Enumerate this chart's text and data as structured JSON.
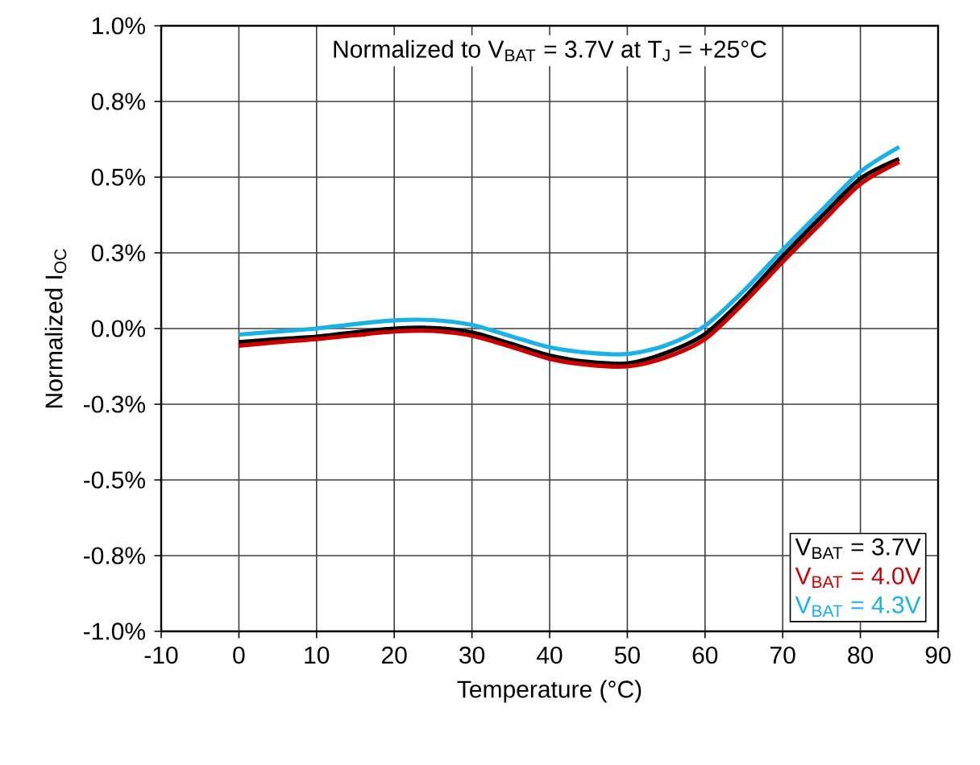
{
  "chart_data": {
    "type": "line",
    "xlabel": "Temperature (°C)",
    "ylabel": "Normalized I$_{OC}$",
    "annotations": [
      "Normalized to V$_{BAT}$ = 3.7V at T$_{J}$ = +25°C"
    ],
    "x": [
      0,
      5,
      10,
      15,
      20,
      25,
      30,
      35,
      40,
      45,
      50,
      55,
      60,
      65,
      70,
      75,
      80,
      85
    ],
    "series": [
      {
        "name": "V$_{BAT}$ = 3.7V",
        "color": "#000000",
        "values": [
          -0.045,
          -0.035,
          -0.027,
          -0.012,
          0.0,
          0.002,
          -0.013,
          -0.05,
          -0.089,
          -0.11,
          -0.115,
          -0.08,
          -0.018,
          0.1,
          0.239,
          0.37,
          0.495,
          0.56
        ]
      },
      {
        "name": "V$_{BAT}$ = 4.0V",
        "color": "#cc0000",
        "values": [
          -0.057,
          -0.045,
          -0.035,
          -0.022,
          -0.01,
          -0.008,
          -0.024,
          -0.06,
          -0.1,
          -0.12,
          -0.125,
          -0.095,
          -0.035,
          0.085,
          0.22,
          0.35,
          0.477,
          0.55
        ]
      },
      {
        "name": "V$_{BAT}$ = 4.3V",
        "color": "#1ab0e8",
        "values": [
          -0.02,
          -0.01,
          0.0,
          0.015,
          0.027,
          0.028,
          0.012,
          -0.025,
          -0.062,
          -0.08,
          -0.084,
          -0.055,
          0.009,
          0.125,
          0.26,
          0.39,
          0.518,
          0.6
        ]
      }
    ],
    "xlim": [
      -10,
      90
    ],
    "xticks": [
      -10,
      0,
      10,
      20,
      30,
      40,
      50,
      60,
      70,
      80,
      90
    ],
    "ylim": [
      -1.0,
      1.0
    ],
    "yticks": [
      {
        "value": -1.0,
        "label": "-1.0%"
      },
      {
        "value": -0.75,
        "label": "-0.8%"
      },
      {
        "value": -0.5,
        "label": "-0.5%"
      },
      {
        "value": -0.25,
        "label": "-0.3%"
      },
      {
        "value": 0.0,
        "label": "0.0%"
      },
      {
        "value": 0.25,
        "label": "0.3%"
      },
      {
        "value": 0.5,
        "label": "0.5%"
      },
      {
        "value": 0.75,
        "label": "0.8%"
      },
      {
        "value": 1.0,
        "label": "1.0%"
      }
    ],
    "grid": true,
    "legend": "bottom right",
    "marker": "none",
    "line_style": "solid"
  }
}
